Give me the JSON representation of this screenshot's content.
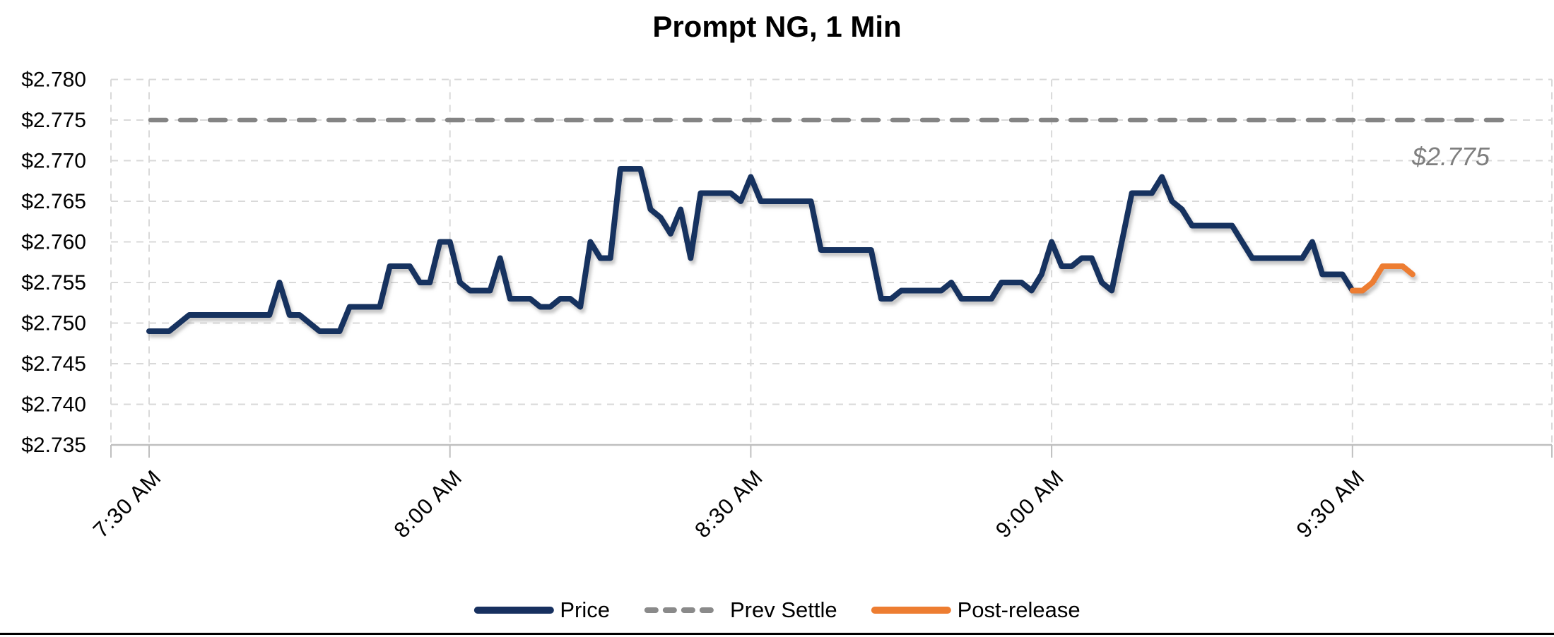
{
  "title": "Prompt NG, 1 Min",
  "annotation": {
    "text": "$2.775",
    "color": "#7f7f7f"
  },
  "colors": {
    "price": "#17305F",
    "post_release": "#ED7D31",
    "prev_settle": "#848484",
    "gridline": "#D9D9D9",
    "axis": "#BFBFBF",
    "text": "#000000"
  },
  "y_axis": {
    "labels": [
      "$2.780",
      "$2.775",
      "$2.770",
      "$2.765",
      "$2.760",
      "$2.755",
      "$2.750",
      "$2.745",
      "$2.740",
      "$2.735"
    ],
    "values": [
      2.78,
      2.775,
      2.77,
      2.765,
      2.76,
      2.755,
      2.75,
      2.745,
      2.74,
      2.735
    ]
  },
  "legend": {
    "items": [
      {
        "label": "Price",
        "color": "#17305F",
        "style": "solid"
      },
      {
        "label": "Prev Settle",
        "color": "#8a8a8a",
        "style": "dashed"
      },
      {
        "label": "Post-release",
        "color": "#ED7D31",
        "style": "solid"
      }
    ]
  },
  "chart_data": {
    "type": "line",
    "title": "Prompt NG, 1 Min",
    "xlabel": "",
    "ylabel": "",
    "ylim": [
      2.735,
      2.78
    ],
    "y_tick_step": 0.005,
    "grid": true,
    "legend_position": "bottom",
    "interval_minutes": 1,
    "prev_settle": 2.775,
    "annotation_value": "$2.775",
    "x_ticks": [
      {
        "label": "7:30 AM",
        "minute": 0
      },
      {
        "label": "8:00 AM",
        "minute": 30
      },
      {
        "label": "8:30 AM",
        "minute": 60
      },
      {
        "label": "9:00 AM",
        "minute": 90
      },
      {
        "label": "9:30 AM",
        "minute": 120
      }
    ],
    "series": [
      {
        "name": "Price",
        "style": "solid",
        "color": "#17305F",
        "start_minute": 0,
        "values": [
          2.749,
          2.749,
          2.749,
          2.75,
          2.751,
          2.751,
          2.751,
          2.751,
          2.751,
          2.751,
          2.751,
          2.751,
          2.751,
          2.755,
          2.751,
          2.751,
          2.75,
          2.749,
          2.749,
          2.749,
          2.752,
          2.752,
          2.752,
          2.752,
          2.757,
          2.757,
          2.757,
          2.755,
          2.755,
          2.76,
          2.76,
          2.755,
          2.754,
          2.754,
          2.754,
          2.758,
          2.753,
          2.753,
          2.753,
          2.752,
          2.752,
          2.753,
          2.753,
          2.752,
          2.76,
          2.758,
          2.758,
          2.769,
          2.769,
          2.769,
          2.764,
          2.763,
          2.761,
          2.764,
          2.758,
          2.766,
          2.766,
          2.766,
          2.766,
          2.765,
          2.768,
          2.765,
          2.765,
          2.765,
          2.765,
          2.765,
          2.765,
          2.759,
          2.759,
          2.759,
          2.759,
          2.759,
          2.759,
          2.753,
          2.753,
          2.754,
          2.754,
          2.754,
          2.754,
          2.754,
          2.755,
          2.753,
          2.753,
          2.753,
          2.753,
          2.755,
          2.755,
          2.755,
          2.754,
          2.756,
          2.76,
          2.757,
          2.757,
          2.758,
          2.758,
          2.755,
          2.754,
          2.76,
          2.766,
          2.766,
          2.766,
          2.768,
          2.765,
          2.764,
          2.762,
          2.762,
          2.762,
          2.762,
          2.762,
          2.76,
          2.758,
          2.758,
          2.758,
          2.758,
          2.758,
          2.758,
          2.76,
          2.756,
          2.756,
          2.756,
          2.754,
          2.754
        ]
      },
      {
        "name": "Prev Settle",
        "style": "dashed",
        "color": "#848484",
        "value": 2.775
      },
      {
        "name": "Post-release",
        "style": "solid",
        "color": "#ED7D31",
        "start_minute": 120,
        "values": [
          2.754,
          2.754,
          2.755,
          2.757,
          2.757,
          2.757,
          2.756
        ]
      }
    ]
  }
}
